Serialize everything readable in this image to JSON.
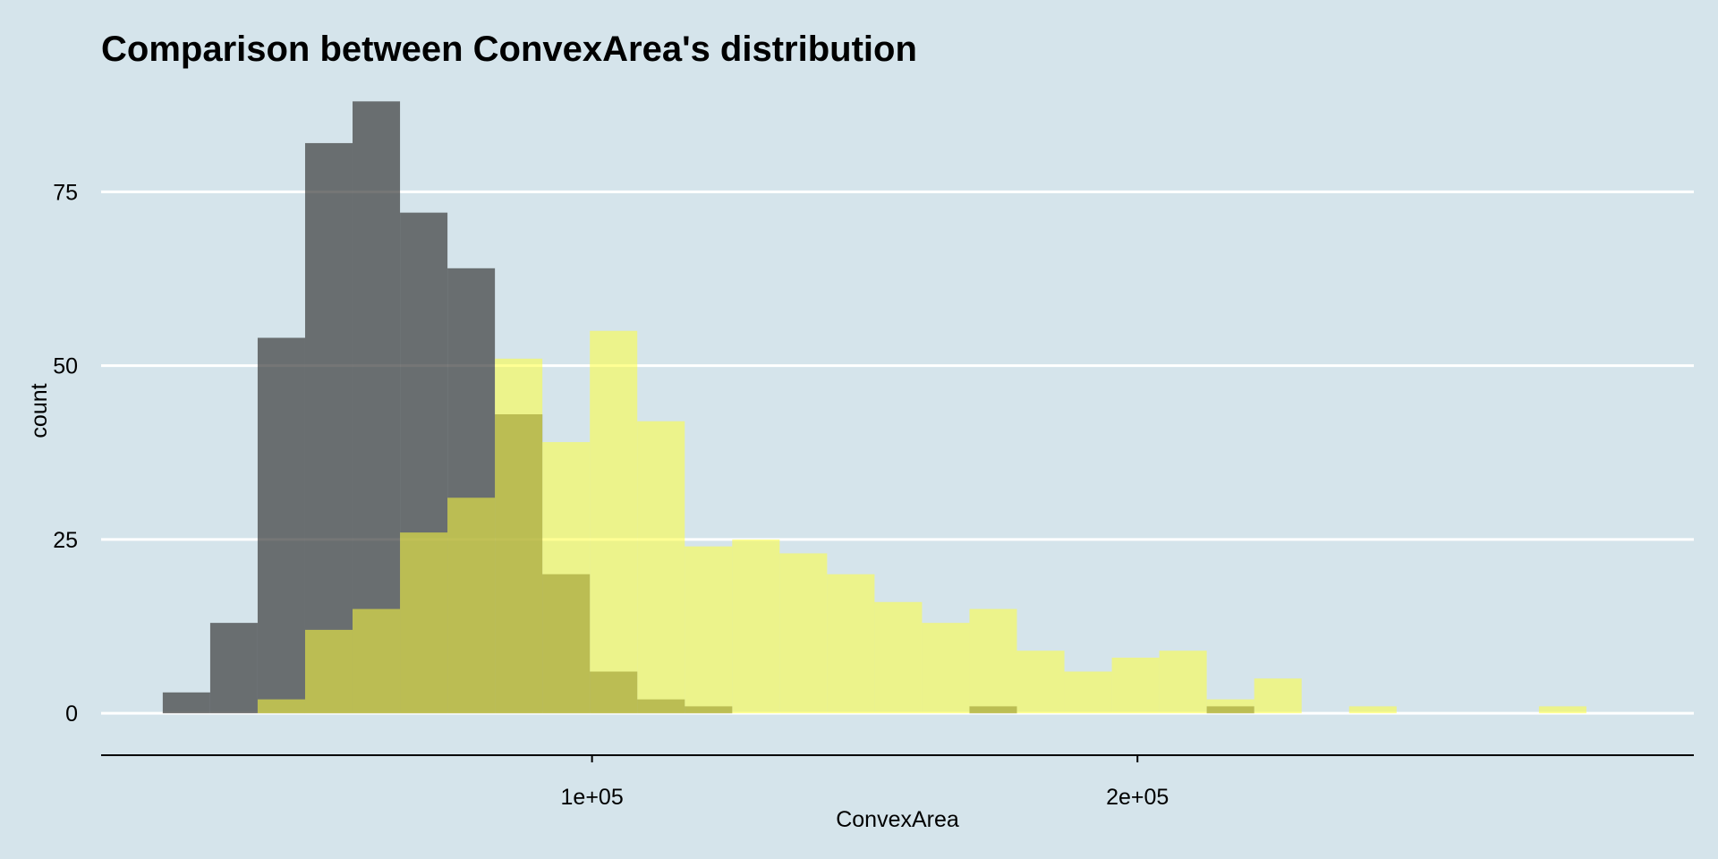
{
  "chart_data": {
    "type": "bar",
    "subtype": "overlaid-histogram",
    "title": "Comparison between ConvexArea's distribution",
    "xlabel": "ConvexArea",
    "ylabel": "count",
    "xlim": [
      10000,
      302000
    ],
    "ylim": [
      -5,
      91
    ],
    "x_ticks": [
      {
        "value": 100000,
        "label": "1e+05"
      },
      {
        "value": 200000,
        "label": "2e+05"
      }
    ],
    "y_ticks": [
      {
        "value": 0,
        "label": "0"
      },
      {
        "value": 25,
        "label": "25"
      },
      {
        "value": 50,
        "label": "50"
      },
      {
        "value": 75,
        "label": "75"
      }
    ],
    "grid": "horizontal-major",
    "legend": "none",
    "bin_width": 8700,
    "series": [
      {
        "color": "#3a3c3c",
        "opacity": 0.7,
        "bins": [
          {
            "x0": 21300,
            "x1": 30000,
            "count": 3
          },
          {
            "x0": 30000,
            "x1": 38700,
            "count": 13
          },
          {
            "x0": 38700,
            "x1": 47400,
            "count": 54
          },
          {
            "x0": 47400,
            "x1": 56100,
            "count": 82
          },
          {
            "x0": 56100,
            "x1": 64800,
            "count": 88
          },
          {
            "x0": 64800,
            "x1": 73500,
            "count": 72
          },
          {
            "x0": 73500,
            "x1": 82200,
            "count": 64
          },
          {
            "x0": 82200,
            "x1": 90900,
            "count": 43
          },
          {
            "x0": 90900,
            "x1": 99600,
            "count": 20
          },
          {
            "x0": 99600,
            "x1": 108300,
            "count": 6
          },
          {
            "x0": 108300,
            "x1": 117000,
            "count": 2
          },
          {
            "x0": 117000,
            "x1": 125700,
            "count": 1
          },
          {
            "x0": 169200,
            "x1": 177900,
            "count": 1
          },
          {
            "x0": 212700,
            "x1": 221400,
            "count": 1
          }
        ]
      },
      {
        "color": "#ffff3c",
        "opacity": 0.55,
        "bins": [
          {
            "x0": 38700,
            "x1": 47400,
            "count": 2
          },
          {
            "x0": 47400,
            "x1": 56100,
            "count": 12
          },
          {
            "x0": 56100,
            "x1": 64800,
            "count": 15
          },
          {
            "x0": 64800,
            "x1": 73500,
            "count": 26
          },
          {
            "x0": 73500,
            "x1": 82200,
            "count": 31
          },
          {
            "x0": 82200,
            "x1": 90900,
            "count": 51
          },
          {
            "x0": 90900,
            "x1": 99600,
            "count": 39
          },
          {
            "x0": 99600,
            "x1": 108300,
            "count": 55
          },
          {
            "x0": 108300,
            "x1": 117000,
            "count": 42
          },
          {
            "x0": 117000,
            "x1": 125700,
            "count": 24
          },
          {
            "x0": 125700,
            "x1": 134400,
            "count": 25
          },
          {
            "x0": 134400,
            "x1": 143100,
            "count": 23
          },
          {
            "x0": 143100,
            "x1": 151800,
            "count": 20
          },
          {
            "x0": 151800,
            "x1": 160500,
            "count": 16
          },
          {
            "x0": 160500,
            "x1": 169200,
            "count": 13
          },
          {
            "x0": 169200,
            "x1": 177900,
            "count": 15
          },
          {
            "x0": 177900,
            "x1": 186600,
            "count": 9
          },
          {
            "x0": 186600,
            "x1": 195300,
            "count": 6
          },
          {
            "x0": 195300,
            "x1": 204000,
            "count": 8
          },
          {
            "x0": 204000,
            "x1": 212700,
            "count": 9
          },
          {
            "x0": 212700,
            "x1": 221400,
            "count": 2
          },
          {
            "x0": 221400,
            "x1": 230100,
            "count": 5
          },
          {
            "x0": 238800,
            "x1": 247500,
            "count": 1
          },
          {
            "x0": 273600,
            "x1": 282300,
            "count": 1
          }
        ]
      }
    ]
  }
}
